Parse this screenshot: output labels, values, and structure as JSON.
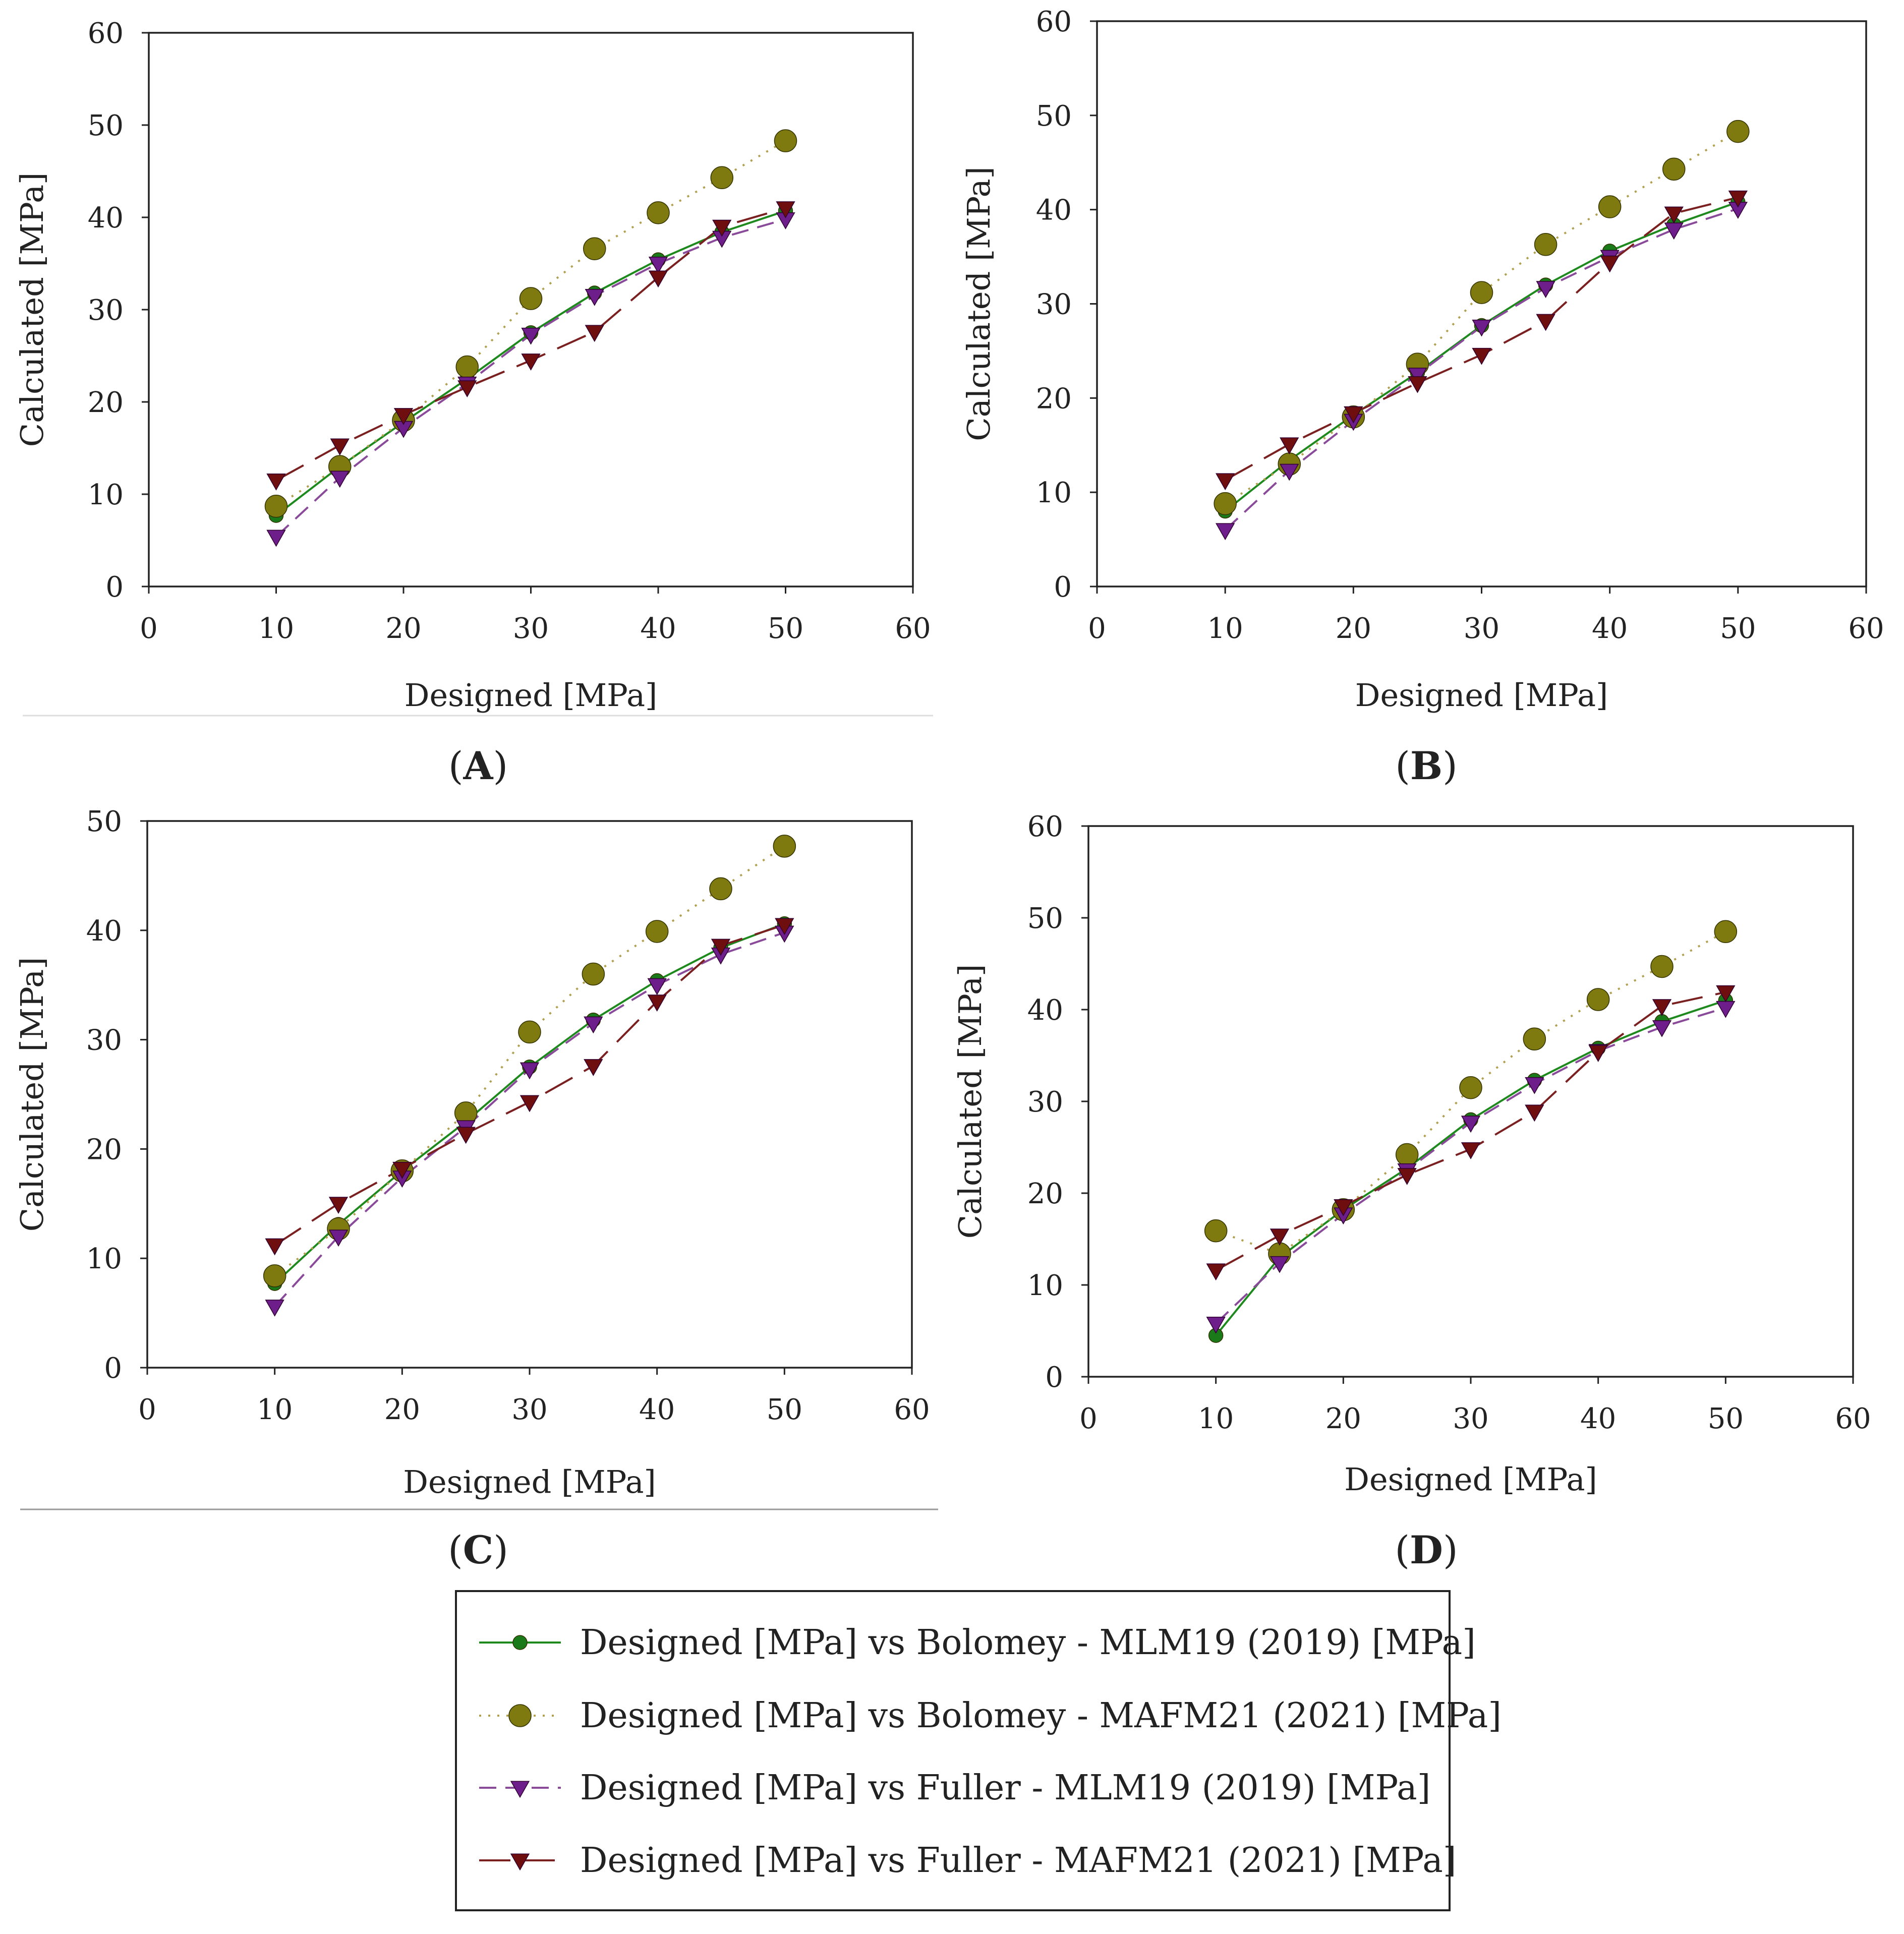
{
  "figure": {
    "series_styles": [
      {
        "color": "#1e8a1e",
        "marker_color": "#1a7a1a",
        "dash": "",
        "marker": "circle",
        "marker_r": 14
      },
      {
        "color": "#b0a050",
        "marker_color": "#7e7a10",
        "dash": "4 14",
        "marker": "circle",
        "marker_r": 22
      },
      {
        "color": "#8a4a9a",
        "marker_color": "#6e1e8a",
        "dash": "34 18",
        "marker": "triangle",
        "marker_r": 17
      },
      {
        "color": "#7a2020",
        "marker_color": "#6e0e0e",
        "dash": "62 26",
        "marker": "triangle",
        "marker_r": 17
      }
    ]
  },
  "chart_data": [
    {
      "panel": "A",
      "type": "line",
      "xlabel": "Designed [MPa]",
      "ylabel": "Calculated [MPa]",
      "xlim": [
        0,
        60
      ],
      "ylim": [
        0,
        60
      ],
      "xticks": [
        0,
        10,
        20,
        30,
        40,
        50,
        60
      ],
      "yticks": [
        0,
        10,
        20,
        30,
        40,
        50,
        60
      ],
      "x": [
        10,
        15,
        20,
        25,
        30,
        35,
        40,
        45,
        50
      ],
      "series": [
        {
          "name": "Designed [MPa] vs Bolomey - MLM19 (2019) [MPa]",
          "values": [
            7.7,
            13.0,
            17.8,
            22.5,
            27.5,
            31.8,
            35.4,
            38.4,
            40.7
          ]
        },
        {
          "name": "Designed [MPa] vs Bolomey - MAFM21 (2021) [MPa]",
          "values": [
            8.7,
            13.0,
            18.0,
            23.8,
            31.2,
            36.6,
            40.5,
            44.3,
            48.3
          ]
        },
        {
          "name": "Designed [MPa] vs Fuller - MLM19 (2019) [MPa]",
          "values": [
            5.4,
            11.8,
            17.2,
            22.0,
            27.3,
            31.5,
            35.0,
            37.8,
            39.8
          ]
        },
        {
          "name": "Designed [MPa] vs Fuller - MAFM21 (2021) [MPa]",
          "values": [
            11.5,
            15.3,
            18.6,
            21.6,
            24.5,
            27.6,
            33.5,
            39.0,
            41.0
          ]
        }
      ]
    },
    {
      "panel": "B",
      "type": "line",
      "xlabel": "Designed [MPa]",
      "ylabel": "Calculated [MPa]",
      "xlim": [
        0,
        60
      ],
      "ylim": [
        0,
        60
      ],
      "xticks": [
        0,
        10,
        20,
        30,
        40,
        50,
        60
      ],
      "yticks": [
        0,
        10,
        20,
        30,
        40,
        50,
        60
      ],
      "x": [
        10,
        15,
        20,
        25,
        30,
        35,
        40,
        45,
        50
      ],
      "series": [
        {
          "name": "Designed [MPa] vs Bolomey - MLM19 (2019) [MPa]",
          "values": [
            8.0,
            13.4,
            18.2,
            22.7,
            27.7,
            32.0,
            35.6,
            38.4,
            40.8
          ]
        },
        {
          "name": "Designed [MPa] vs Bolomey - MAFM21 (2021) [MPa]",
          "values": [
            8.8,
            13.0,
            18.0,
            23.6,
            31.2,
            36.3,
            40.3,
            44.3,
            48.3
          ]
        },
        {
          "name": "Designed [MPa] vs Fuller - MLM19 (2019) [MPa]",
          "values": [
            6.0,
            12.3,
            17.6,
            22.5,
            27.6,
            31.7,
            35.0,
            37.9,
            40.1
          ]
        },
        {
          "name": "Designed [MPa] vs Fuller - MAFM21 (2021) [MPa]",
          "values": [
            11.3,
            15.1,
            18.4,
            21.6,
            24.6,
            28.2,
            34.4,
            39.6,
            41.3
          ]
        }
      ]
    },
    {
      "panel": "C",
      "type": "line",
      "xlabel": "Designed [MPa]",
      "ylabel": "Calculated [MPa]",
      "xlim": [
        0,
        60
      ],
      "ylim": [
        0,
        50
      ],
      "xticks": [
        0,
        10,
        20,
        30,
        40,
        50,
        60
      ],
      "yticks": [
        0,
        10,
        20,
        30,
        40,
        50
      ],
      "x": [
        10,
        15,
        20,
        25,
        30,
        35,
        40,
        45,
        50
      ],
      "series": [
        {
          "name": "Designed [MPa] vs Bolomey - MLM19 (2019) [MPa]",
          "values": [
            7.7,
            13.1,
            18.0,
            22.5,
            27.5,
            31.8,
            35.4,
            38.4,
            40.6
          ]
        },
        {
          "name": "Designed [MPa] vs Bolomey - MAFM21 (2021) [MPa]",
          "values": [
            8.4,
            12.7,
            18.0,
            23.3,
            30.7,
            36.0,
            39.9,
            43.8,
            47.7
          ]
        },
        {
          "name": "Designed [MPa] vs Fuller - MLM19 (2019) [MPa]",
          "values": [
            5.6,
            12.0,
            17.4,
            22.0,
            27.3,
            31.5,
            35.0,
            37.8,
            39.8
          ]
        },
        {
          "name": "Designed [MPa] vs Fuller - MAFM21 (2021) [MPa]",
          "values": [
            11.2,
            15.0,
            18.2,
            21.4,
            24.3,
            27.6,
            33.5,
            38.6,
            40.5
          ]
        }
      ]
    },
    {
      "panel": "D",
      "type": "line",
      "xlabel": "Designed [MPa]",
      "ylabel": "Calculated [MPa]",
      "xlim": [
        0,
        60
      ],
      "ylim": [
        0,
        60
      ],
      "xticks": [
        0,
        10,
        20,
        30,
        40,
        50,
        60
      ],
      "yticks": [
        0,
        10,
        20,
        30,
        40,
        50,
        60
      ],
      "x": [
        10,
        15,
        20,
        25,
        30,
        35,
        40,
        45,
        50
      ],
      "series": [
        {
          "name": "Designed [MPa] vs Bolomey - MLM19 (2019) [MPa]",
          "values": [
            4.5,
            13.0,
            18.2,
            22.7,
            28.0,
            32.3,
            35.8,
            38.7,
            41.0
          ]
        },
        {
          "name": "Designed [MPa] vs Bolomey - MAFM21 (2021) [MPa]",
          "values": [
            15.9,
            13.4,
            18.2,
            24.2,
            31.5,
            36.8,
            41.1,
            44.7,
            48.5
          ]
        },
        {
          "name": "Designed [MPa] vs Fuller - MLM19 (2019) [MPa]",
          "values": [
            5.8,
            12.4,
            17.7,
            22.5,
            27.7,
            31.9,
            35.5,
            38.1,
            40.2
          ]
        },
        {
          "name": "Designed [MPa] vs Fuller - MAFM21 (2021) [MPa]",
          "values": [
            11.6,
            15.4,
            18.6,
            22.0,
            24.8,
            28.9,
            35.4,
            40.4,
            41.9
          ]
        }
      ]
    }
  ],
  "legend": {
    "items": [
      "Designed [MPa] vs Bolomey - MLM19 (2019) [MPa]",
      "Designed [MPa] vs Bolomey - MAFM21 (2021) [MPa]",
      "Designed [MPa] vs Fuller - MLM19 (2019) [MPa]",
      "Designed [MPa] vs Fuller - MAFM21 (2021) [MPa]"
    ]
  }
}
